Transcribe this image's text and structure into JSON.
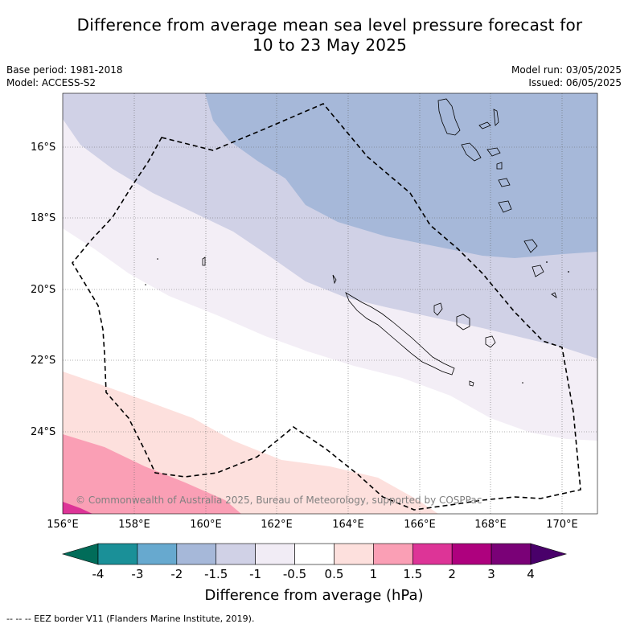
{
  "title_line1": "Difference from average mean sea level pressure forecast for",
  "title_line2": "10 to 23 May 2025",
  "base_period": "Base period: 1981-2018",
  "model": "Model: ACCESS-S2",
  "model_run": "Model run: 03/05/2025",
  "issued": "Issued: 06/05/2025",
  "copyright": "© Commonwealth of Australia 2025, Bureau of Meteorology, supported by COSPPac",
  "lat_labels": [
    "16°S",
    "18°S",
    "20°S",
    "22°S",
    "24°S"
  ],
  "lon_labels": [
    "156°E",
    "158°E",
    "160°E",
    "162°E",
    "164°E",
    "166°E",
    "168°E",
    "170°E"
  ],
  "colorbar": {
    "title": "Difference from average (hPa)",
    "ticks": [
      "-4",
      "-3",
      "-2",
      "-1.5",
      "-1",
      "-0.5",
      "0.5",
      "1",
      "1.5",
      "2",
      "3",
      "4"
    ],
    "colors": [
      "#1a9098",
      "#67a9cf",
      "#a6b8d9",
      "#d0d1e6",
      "#f1ecf5",
      "#ffffff",
      "#fde0dd",
      "#fa9fb5",
      "#dd3497",
      "#ae017e",
      "#7a0177"
    ],
    "under_color": "#016c59",
    "over_color": "#49006a"
  },
  "footnote": "--  --  -- EEZ border V11 (Flanders Marine Institute, 2019)."
}
